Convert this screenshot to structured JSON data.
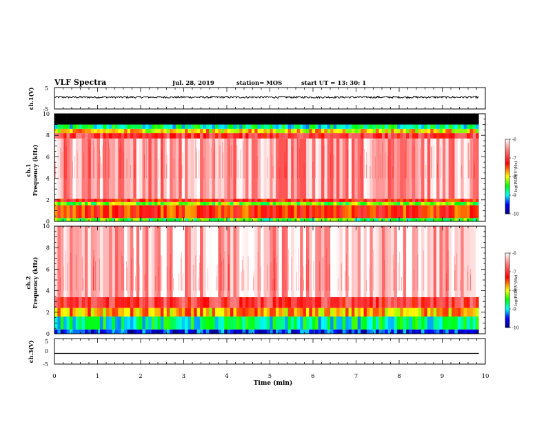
{
  "header": {
    "title": "VLF Spectra",
    "date": "Jul. 28, 2019",
    "station": "station= MOS",
    "start": "start UT = 13: 30: 1"
  },
  "colors": {
    "background": "#ffffff",
    "axis": "#000000",
    "no_data_band": "#000000",
    "colormap": [
      "#000080",
      "#0000ff",
      "#00ffff",
      "#00ff00",
      "#ffff00",
      "#ff0000",
      "#ffffff"
    ]
  },
  "chart_data": [
    {
      "type": "line",
      "name": "ch1-waveform",
      "ylabel": "ch.1(V)",
      "ylim": [
        -5,
        5
      ],
      "y_ticks": [
        "5",
        "-5"
      ],
      "xlim": [
        0,
        10
      ],
      "x": [
        0,
        1,
        2,
        3,
        4,
        5,
        6,
        7,
        8,
        9,
        9.85
      ],
      "y": [
        0.5,
        0.6,
        0.5,
        0.5,
        0.6,
        0.5,
        0.5,
        0.6,
        0.5,
        0.5,
        0.5
      ],
      "grid": false
    },
    {
      "type": "heatmap",
      "name": "ch1-spectrogram",
      "ylabel": "ch.1",
      "ylabel2": "Frequency (kHz)",
      "ylim": [
        0,
        10
      ],
      "y_ticks": [
        "0",
        "2",
        "4",
        "6",
        "8",
        "10"
      ],
      "xlim": [
        0,
        10
      ],
      "data_end_min": 9.85,
      "colorbar": {
        "label": "log(PSD)(V²/Hz)",
        "range": [
          -10,
          -6
        ],
        "ticks": [
          "-6",
          "-7",
          "-8",
          "-9",
          "-10"
        ]
      },
      "bands_khz": [
        {
          "from": 0,
          "to": 0.3,
          "level": -8.5
        },
        {
          "from": 0.3,
          "to": 1.5,
          "level": -7.3
        },
        {
          "from": 1.5,
          "to": 1.8,
          "level": -8.3
        },
        {
          "from": 1.8,
          "to": 2.1,
          "level": -7.2
        },
        {
          "from": 2.1,
          "to": 7.7,
          "level": -6.4
        },
        {
          "from": 7.7,
          "to": 8.2,
          "level": -7.0
        },
        {
          "from": 8.2,
          "to": 8.6,
          "level": -7.9
        },
        {
          "from": 8.6,
          "to": 9.0,
          "level": -8.8
        },
        {
          "from": 9.0,
          "to": 10.0,
          "level": -11
        }
      ]
    },
    {
      "type": "heatmap",
      "name": "ch2-spectrogram",
      "ylabel": "ch.2",
      "ylabel2": "Frequency (kHz)",
      "ylim": [
        0,
        10
      ],
      "y_ticks": [
        "0",
        "2",
        "4",
        "6",
        "8",
        "10"
      ],
      "xlim": [
        0,
        10
      ],
      "data_end_min": 9.85,
      "colorbar": {
        "label": "log(PSD)(V²/Hz)",
        "range": [
          -10,
          -6
        ],
        "ticks": [
          "-6",
          "-7",
          "-8",
          "-9",
          "-10"
        ]
      },
      "bands_khz": [
        {
          "from": 0,
          "to": 0.4,
          "level": -9.5
        },
        {
          "from": 0.4,
          "to": 1.6,
          "level": -8.8
        },
        {
          "from": 1.6,
          "to": 2.4,
          "level": -7.8
        },
        {
          "from": 2.4,
          "to": 3.4,
          "level": -7.0
        },
        {
          "from": 3.4,
          "to": 10.0,
          "level": -6.3
        }
      ]
    },
    {
      "type": "line",
      "name": "ch3-waveform",
      "ylabel": "ch.3(V)",
      "ylim": [
        -5,
        5
      ],
      "y_ticks": [
        "5",
        "0",
        "-5"
      ],
      "xlim": [
        0,
        10
      ],
      "x": [
        0,
        9.85
      ],
      "y": [
        -0.8,
        -0.8
      ],
      "grid": false
    }
  ],
  "x_axis": {
    "label": "Time (min)",
    "range": [
      0,
      10
    ],
    "ticks": [
      "0",
      "1",
      "2",
      "3",
      "4",
      "5",
      "6",
      "7",
      "8",
      "9",
      "10"
    ]
  }
}
